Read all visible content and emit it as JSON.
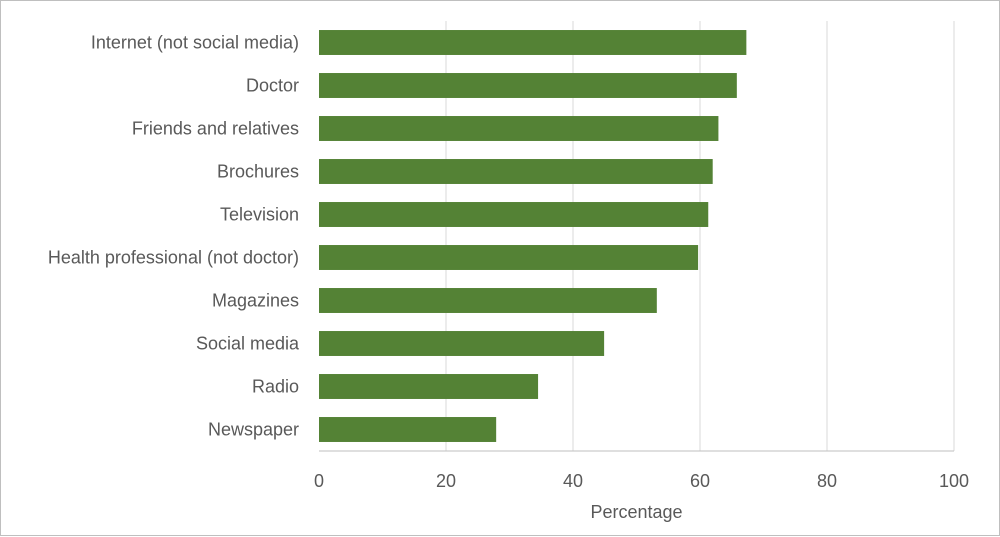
{
  "chart_data": {
    "type": "bar",
    "orientation": "horizontal",
    "categories": [
      "Internet (not social media)",
      "Doctor",
      "Friends and relatives",
      "Brochures",
      "Television",
      "Health professional (not doctor)",
      "Magazines",
      "Social media",
      "Radio",
      "Newspaper"
    ],
    "values": [
      67.3,
      65.8,
      62.9,
      62.0,
      61.3,
      59.7,
      53.2,
      44.9,
      34.5,
      27.9
    ],
    "title": "",
    "xlabel": "Percentage",
    "ylabel": "",
    "xlim": [
      0,
      100
    ],
    "xticks": [
      0,
      20,
      40,
      60,
      80,
      100
    ],
    "grid": true,
    "legend": "none",
    "bar_color": "#548235",
    "grid_color": "#d9d9d9",
    "axis_color": "#bfbfbf"
  }
}
